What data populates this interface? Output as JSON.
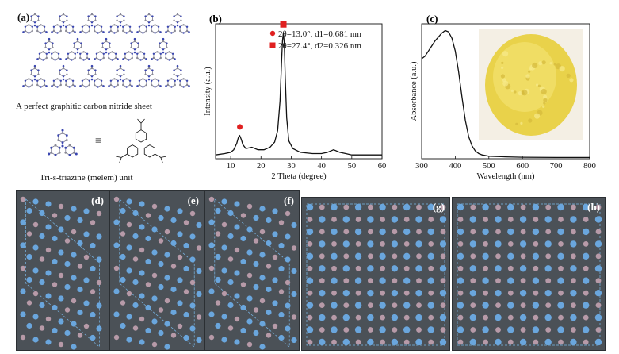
{
  "panel_a": {
    "label": "(a)",
    "sheet_caption": "A perfect graphitic carbon nitride sheet",
    "unit_caption": "Tri-s-triazine (melem) unit",
    "equiv_symbol": "≡"
  },
  "panel_b": {
    "label": "(b)",
    "legend": [
      {
        "text": "2θ=13.0°, d1=0.681 nm",
        "marker": "circle",
        "color": "#e02020"
      },
      {
        "text": "2θ=27.4°, d2=0.326 nm",
        "marker": "square",
        "color": "#e02020"
      }
    ]
  },
  "panel_c": {
    "label": "(c)"
  },
  "sim_panels": [
    {
      "label": "(d)"
    },
    {
      "label": "(e)"
    },
    {
      "label": "(f)"
    },
    {
      "label": "(g)"
    },
    {
      "label": "(h)"
    }
  ],
  "colors": {
    "carbon": "#b79aa8",
    "nitrogen": "#6aa6dd",
    "sim_bg": "#4b5157",
    "marker": "#e02020"
  },
  "chart_data": [
    {
      "type": "line",
      "title": "",
      "xlabel": "2 Theta (degree)",
      "ylabel": "Intensity (a.u.)",
      "xlim": [
        5,
        60
      ],
      "x_ticks": [
        10,
        20,
        30,
        40,
        50,
        60
      ],
      "series": [
        {
          "x": [
            5,
            8,
            10,
            11,
            12,
            12.6,
            13.0,
            13.5,
            14,
            15,
            17,
            19,
            21,
            23,
            24.5,
            25.5,
            26.3,
            26.8,
            27.1,
            27.4,
            27.7,
            28.0,
            28.5,
            29.2,
            30.5,
            33,
            37,
            40,
            42,
            44,
            46,
            48,
            50,
            54,
            58,
            60
          ],
          "y": [
            0.03,
            0.04,
            0.05,
            0.07,
            0.12,
            0.17,
            0.18,
            0.15,
            0.11,
            0.08,
            0.09,
            0.07,
            0.07,
            0.09,
            0.13,
            0.22,
            0.45,
            0.75,
            0.92,
            0.98,
            0.9,
            0.65,
            0.32,
            0.14,
            0.08,
            0.05,
            0.04,
            0.04,
            0.05,
            0.07,
            0.05,
            0.04,
            0.03,
            0.03,
            0.03,
            0.03
          ]
        }
      ],
      "peak_markers": [
        {
          "x": 13.0,
          "marker": "circle"
        },
        {
          "x": 27.4,
          "marker": "square"
        }
      ]
    },
    {
      "type": "line",
      "title": "",
      "xlabel": "Wavelength (nm)",
      "ylabel": "Absorbance (a.u.)",
      "xlim": [
        300,
        800
      ],
      "x_ticks": [
        300,
        400,
        500,
        600,
        700,
        800
      ],
      "series": [
        {
          "x": [
            300,
            310,
            320,
            330,
            340,
            350,
            360,
            370,
            380,
            390,
            400,
            410,
            420,
            430,
            440,
            450,
            460,
            470,
            480,
            500,
            550,
            600,
            700,
            800
          ],
          "y": [
            0.78,
            0.8,
            0.84,
            0.88,
            0.92,
            0.95,
            0.98,
            1.0,
            0.99,
            0.94,
            0.84,
            0.68,
            0.48,
            0.3,
            0.17,
            0.1,
            0.06,
            0.04,
            0.03,
            0.02,
            0.015,
            0.012,
            0.01,
            0.01
          ]
        }
      ]
    }
  ]
}
